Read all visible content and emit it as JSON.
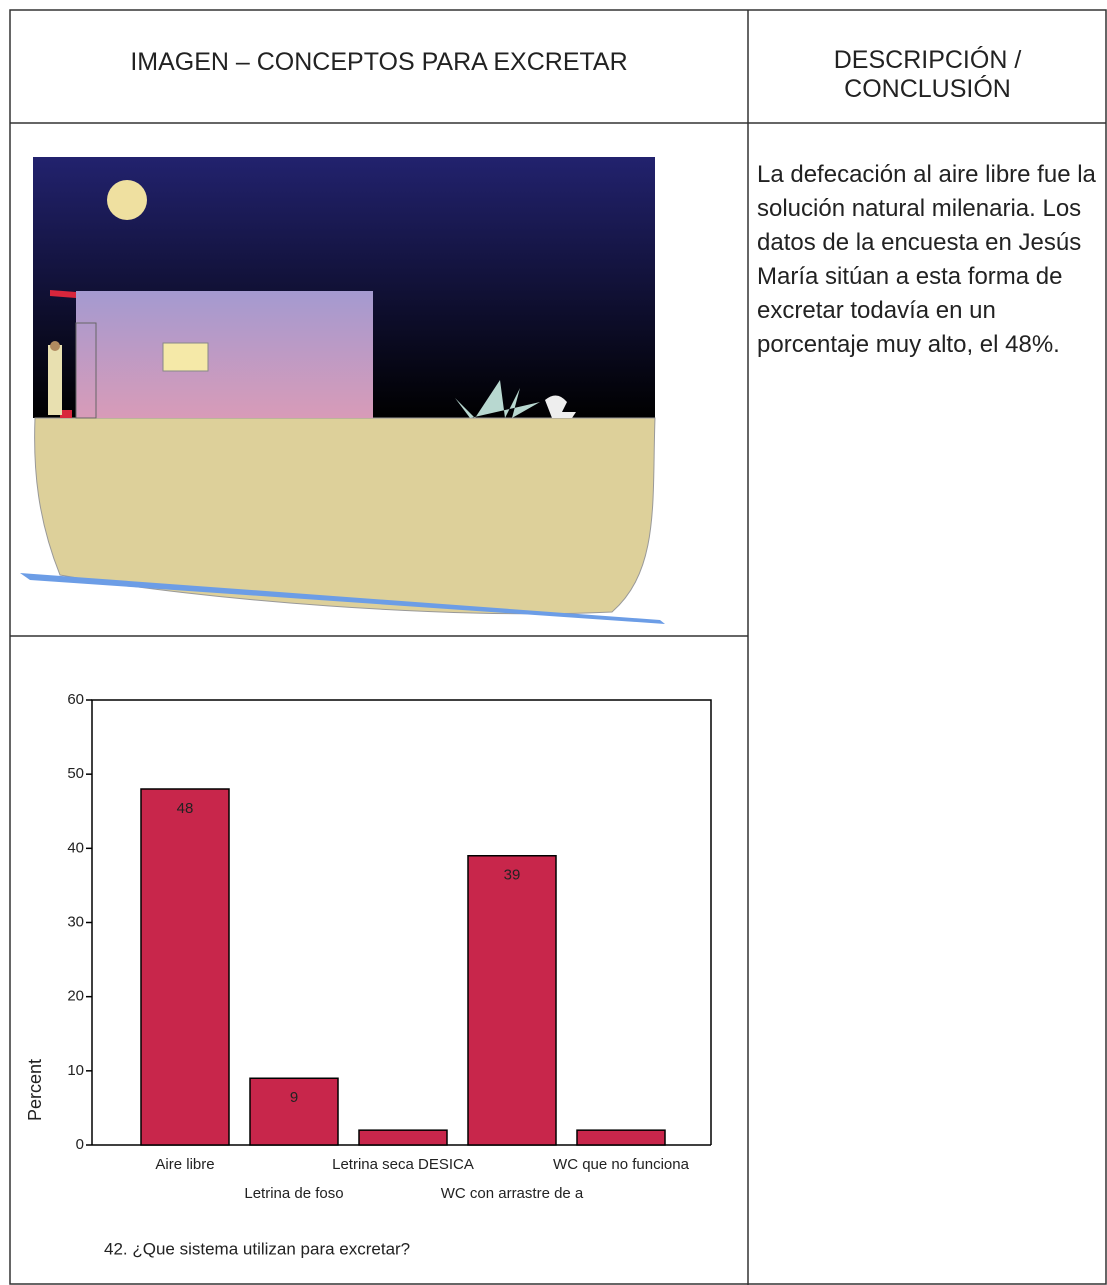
{
  "table": {
    "headers": [
      "IMAGEN – CONCEPTOS PARA EXCRETAR",
      "DESCRIPCIÓN / CONCLUSIÓN"
    ],
    "description": "La defecación al aire libre fue la solución natural milenaria. Los datos de la encuesta en Jesús María sitúan a esta forma de excretar todavía en un porcentaje muy alto, el 48%."
  },
  "chart_data": {
    "type": "bar",
    "caption": "42. ¿Que sistema utilizan para excretar?",
    "ylabel": "Percent",
    "categories": [
      "Aire libre",
      "Letrina de foso",
      "Letrina seca DESICA",
      "WC con arrastre de a",
      "WC que no funciona"
    ],
    "values": [
      48,
      9,
      2,
      39,
      2
    ],
    "value_labels": [
      "48",
      "9",
      null,
      "39",
      null
    ],
    "color": "#c8264b",
    "ylim": [
      0,
      60
    ],
    "yticks": [
      0,
      10,
      20,
      30,
      40,
      50,
      60
    ]
  }
}
